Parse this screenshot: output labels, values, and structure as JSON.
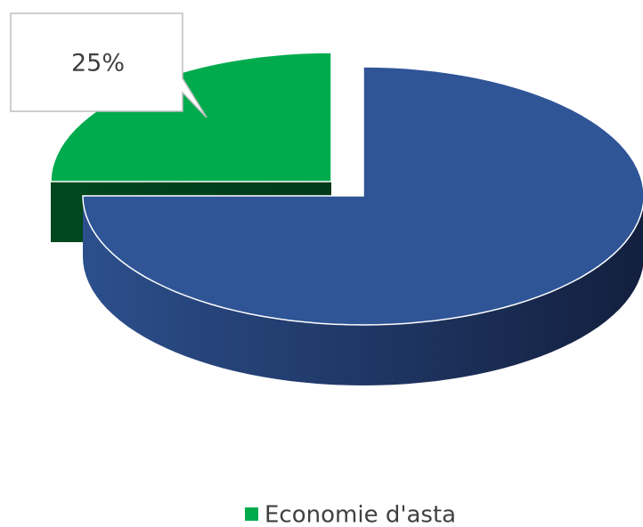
{
  "chart_data": {
    "type": "pie3d",
    "categories": [
      "Economie d'asta",
      null
    ],
    "values": [
      25,
      75
    ],
    "value_labels": [
      "25%",
      null
    ],
    "colors": [
      "#00ab4e",
      "#2f5597"
    ],
    "exploded": [
      true,
      false
    ],
    "legend": "bottom"
  }
}
